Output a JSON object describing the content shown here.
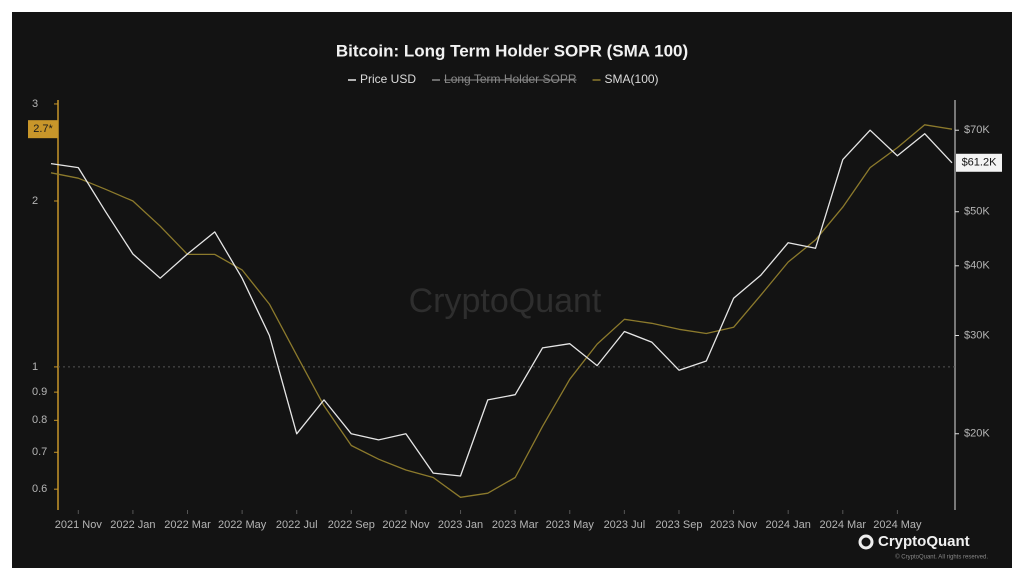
{
  "chart_data": {
    "type": "line",
    "title": "Bitcoin: Long Term Holder SOPR (SMA 100)",
    "x": [
      "2021-10",
      "2021-11",
      "2021-12",
      "2022-01",
      "2022-02",
      "2022-03",
      "2022-04",
      "2022-05",
      "2022-06",
      "2022-07",
      "2022-08",
      "2022-09",
      "2022-10",
      "2022-11",
      "2022-12",
      "2023-01",
      "2023-02",
      "2023-03",
      "2023-04",
      "2023-05",
      "2023-06",
      "2023-07",
      "2023-08",
      "2023-09",
      "2023-10",
      "2023-11",
      "2023-12",
      "2024-01",
      "2024-02",
      "2024-03",
      "2024-04",
      "2024-05",
      "2024-06",
      "2024-07"
    ],
    "xlim": [
      "2021-10",
      "2024-07"
    ],
    "xticks": [
      {
        "value": "2021-11",
        "label": "2021 Nov"
      },
      {
        "value": "2022-01",
        "label": "2022 Jan"
      },
      {
        "value": "2022-03",
        "label": "2022 Mar"
      },
      {
        "value": "2022-05",
        "label": "2022 May"
      },
      {
        "value": "2022-07",
        "label": "2022 Jul"
      },
      {
        "value": "2022-09",
        "label": "2022 Sep"
      },
      {
        "value": "2022-11",
        "label": "2022 Nov"
      },
      {
        "value": "2023-01",
        "label": "2023 Jan"
      },
      {
        "value": "2023-03",
        "label": "2023 Mar"
      },
      {
        "value": "2023-05",
        "label": "2023 May"
      },
      {
        "value": "2023-07",
        "label": "2023 Jul"
      },
      {
        "value": "2023-09",
        "label": "2023 Sep"
      },
      {
        "value": "2023-11",
        "label": "2023 Nov"
      },
      {
        "value": "2024-01",
        "label": "2024 Jan"
      },
      {
        "value": "2024-03",
        "label": "2024 Mar"
      },
      {
        "value": "2024-05",
        "label": "2024 May"
      }
    ],
    "log_scale": true,
    "ylim": [
      0.55,
      3.05
    ],
    "yticks": [
      0.6,
      0.7,
      0.8,
      0.9,
      1,
      2,
      3
    ],
    "y2lim": [
      14600,
      79300
    ],
    "y2ticks": [
      {
        "value": 20000,
        "label": "$20K"
      },
      {
        "value": 30000,
        "label": "$30K"
      },
      {
        "value": 40000,
        "label": "$40K"
      },
      {
        "value": 50000,
        "label": "$50K"
      },
      {
        "value": 70000,
        "label": "$70K"
      }
    ],
    "reference_line": 1,
    "y_marker": {
      "value": 2.7,
      "label": "2.7*"
    },
    "y2_marker": {
      "value": 61200,
      "label": "$61.2K"
    },
    "series": [
      {
        "name": "Price USD",
        "color": "#e6e6e6",
        "axis": "y2",
        "values": [
          61000,
          60000,
          50000,
          42000,
          38000,
          42000,
          46000,
          38000,
          30000,
          20000,
          23000,
          20000,
          19500,
          20000,
          17000,
          16800,
          23000,
          23500,
          28500,
          29000,
          26500,
          30500,
          29200,
          26000,
          27000,
          35000,
          38500,
          44000,
          43000,
          62000,
          70000,
          63000,
          69000,
          61200
        ]
      },
      {
        "name": "Long Term Holder SOPR",
        "color": "#8a8a8a",
        "hidden": true
      },
      {
        "name": "SMA(100)",
        "color": "#8c7a2c",
        "values": [
          2.25,
          2.2,
          2.1,
          2.0,
          1.8,
          1.6,
          1.6,
          1.5,
          1.3,
          1.05,
          0.85,
          0.72,
          0.68,
          0.65,
          0.63,
          0.58,
          0.59,
          0.63,
          0.78,
          0.95,
          1.1,
          1.22,
          1.2,
          1.17,
          1.15,
          1.18,
          1.35,
          1.55,
          1.7,
          1.95,
          2.3,
          2.5,
          2.75,
          2.7
        ]
      }
    ],
    "watermark": "CryptoQuant",
    "brand": "CryptoQuant",
    "copyright": "© CryptoQuant. All rights reserved."
  }
}
